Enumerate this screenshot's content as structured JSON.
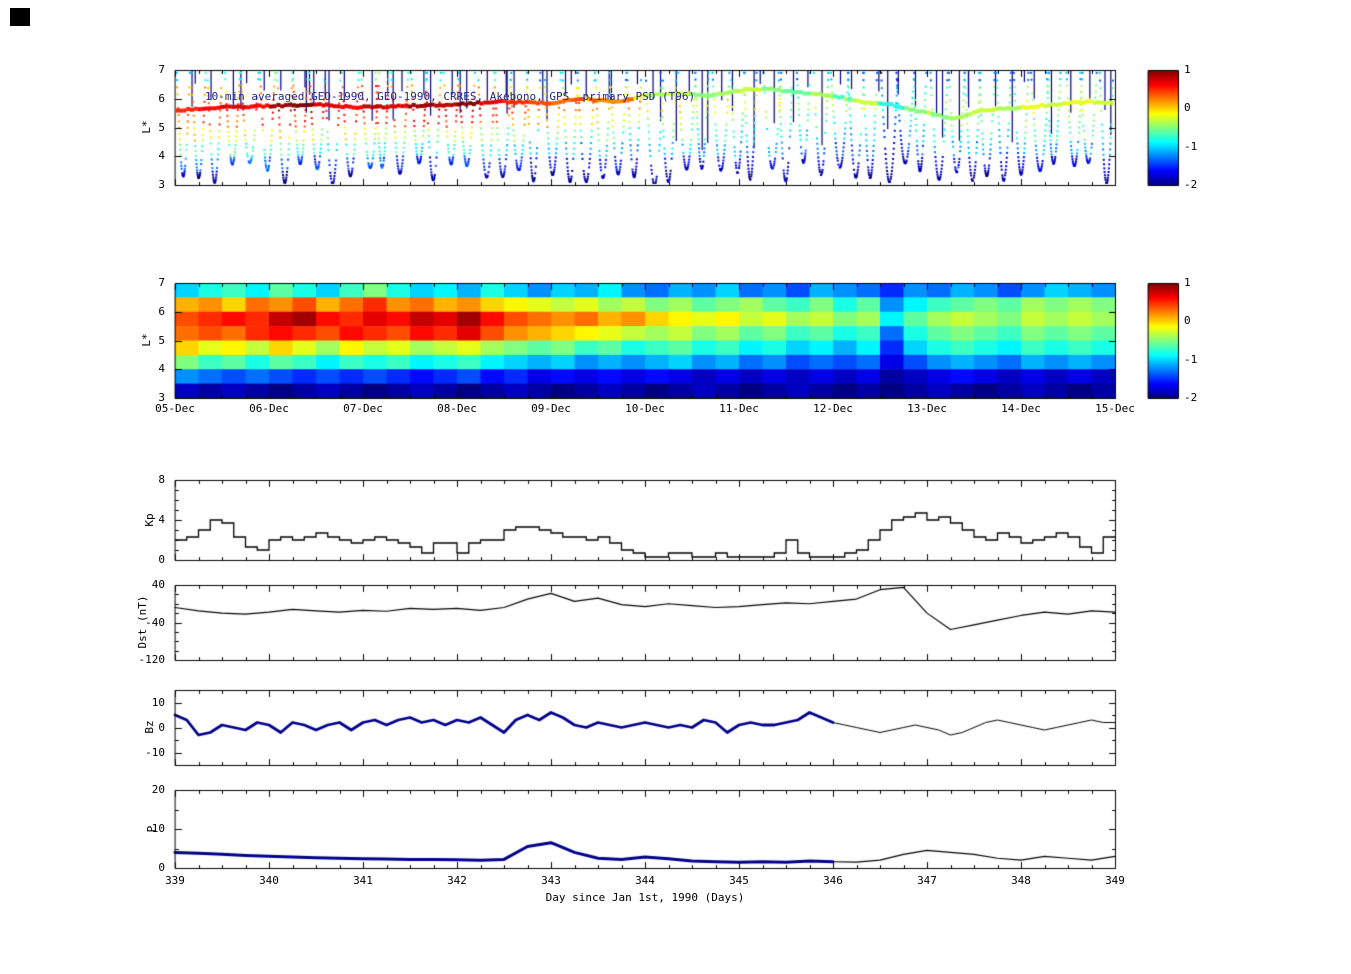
{
  "figure": {
    "xlabel": "Day since Jan 1st, 1990 (Days)",
    "ticks": {
      "panel_L": [
        "7",
        "6",
        "5",
        "4",
        "3"
      ],
      "dates": [
        "05-Dec",
        "06-Dec",
        "07-Dec",
        "08-Dec",
        "09-Dec",
        "10-Dec",
        "11-Dec",
        "12-Dec",
        "13-Dec",
        "14-Dec",
        "15-Dec"
      ],
      "days": [
        "339",
        "340",
        "341",
        "342",
        "343",
        "344",
        "345",
        "346",
        "347",
        "348",
        "349"
      ],
      "colorbar": [
        "1",
        "0",
        "-1",
        "-2"
      ],
      "kp": [
        "8",
        "4",
        "0"
      ],
      "dst": [
        "40",
        "-40",
        "-120"
      ],
      "bz": [
        "10",
        "0",
        "-10"
      ],
      "p": [
        "20",
        "10",
        "0"
      ]
    }
  },
  "chart_data": [
    {
      "type": "scatter",
      "title": "10-min averaged GEO-1990, GEO-1990, CRRES, Akebono, GPS  primary PSD (T96)",
      "title_color": "#26268c",
      "ylabel": "L*",
      "xlim": [
        339,
        349
      ],
      "ylim": [
        3,
        7
      ],
      "colorbar": {
        "range": [
          -2,
          1
        ],
        "ticks": [
          1,
          0,
          -1,
          -2
        ],
        "colormap": "jet"
      },
      "passes": {
        "count": 56,
        "duration_days": 0.15,
        "l_top": 6.9,
        "spike_color": "#000080"
      },
      "geo_track": {
        "points": [
          [
            339.0,
            5.6
          ],
          [
            339.5,
            5.7
          ],
          [
            340.0,
            5.75
          ],
          [
            340.5,
            5.8
          ],
          [
            341.0,
            5.7
          ],
          [
            341.5,
            5.75
          ],
          [
            342.0,
            5.8
          ],
          [
            342.5,
            5.9
          ],
          [
            343.0,
            5.85
          ],
          [
            343.3,
            6.0
          ],
          [
            343.7,
            5.9
          ],
          [
            344.0,
            6.1
          ],
          [
            344.3,
            6.2
          ],
          [
            344.7,
            6.1
          ],
          [
            345.0,
            6.3
          ],
          [
            345.3,
            6.35
          ],
          [
            345.7,
            6.2
          ],
          [
            346.0,
            6.1
          ],
          [
            346.3,
            5.9
          ],
          [
            346.6,
            5.8
          ],
          [
            347.0,
            5.5
          ],
          [
            347.3,
            5.3
          ],
          [
            347.6,
            5.6
          ],
          [
            348.0,
            5.7
          ],
          [
            348.4,
            5.8
          ],
          [
            348.7,
            5.9
          ],
          [
            349.0,
            5.85
          ]
        ]
      }
    },
    {
      "type": "heatmap",
      "ylabel": "L*",
      "xlim": [
        339,
        349
      ],
      "ylim": [
        3,
        7
      ],
      "colorbar": {
        "range": [
          -2,
          1
        ],
        "ticks": [
          1,
          0,
          -1,
          -2
        ],
        "colormap": "jet"
      },
      "grid": {
        "x_start": 339,
        "x_step": 0.25,
        "l_top": 7,
        "l_step": 0.5,
        "values": [
          [
            -1.0,
            -0.8,
            -0.7,
            -0.9,
            -0.6,
            -0.8,
            -1.0,
            -0.7,
            -0.5,
            -0.8,
            -1.0,
            -0.9,
            -1.1,
            -0.8,
            -1.0,
            -1.2,
            -1.0,
            -1.1,
            -0.9,
            -1.2,
            -1.3,
            -1.1,
            -1.2,
            -1.0,
            -1.3,
            -1.2,
            -1.4,
            -1.1,
            -1.2,
            -1.3,
            -1.5,
            -1.2,
            -1.3,
            -1.1,
            -1.2,
            -1.4,
            -1.2,
            -1.0,
            -1.1,
            -1.2
          ],
          [
            0.1,
            0.2,
            0.0,
            0.3,
            0.2,
            0.4,
            0.1,
            0.3,
            0.5,
            0.2,
            0.3,
            0.1,
            0.2,
            0.0,
            -0.1,
            -0.2,
            -0.3,
            -0.2,
            -0.4,
            -0.3,
            -0.5,
            -0.4,
            -0.6,
            -0.5,
            -0.4,
            -0.6,
            -0.7,
            -0.5,
            -0.8,
            -0.6,
            -1.2,
            -0.9,
            -0.7,
            -0.6,
            -0.5,
            -0.6,
            -0.4,
            -0.5,
            -0.4,
            -0.5
          ],
          [
            0.4,
            0.5,
            0.6,
            0.5,
            0.8,
            0.9,
            0.6,
            0.5,
            0.7,
            0.6,
            0.8,
            0.7,
            0.9,
            0.6,
            0.4,
            0.3,
            0.2,
            0.3,
            0.1,
            0.2,
            0.0,
            -0.1,
            -0.2,
            -0.1,
            -0.3,
            -0.2,
            -0.4,
            -0.3,
            -0.5,
            -0.4,
            -0.9,
            -0.6,
            -0.4,
            -0.3,
            -0.4,
            -0.5,
            -0.3,
            -0.4,
            -0.3,
            -0.4
          ],
          [
            0.3,
            0.4,
            0.3,
            0.5,
            0.6,
            0.5,
            0.4,
            0.6,
            0.5,
            0.4,
            0.6,
            0.5,
            0.7,
            0.4,
            0.2,
            0.1,
            0.0,
            -0.1,
            -0.2,
            -0.3,
            -0.4,
            -0.3,
            -0.5,
            -0.4,
            -0.6,
            -0.5,
            -0.7,
            -0.6,
            -0.8,
            -0.7,
            -1.3,
            -0.8,
            -0.6,
            -0.5,
            -0.6,
            -0.7,
            -0.5,
            -0.6,
            -0.5,
            -0.6
          ],
          [
            0.0,
            -0.2,
            -0.1,
            -0.3,
            0.0,
            -0.2,
            -0.4,
            -0.1,
            -0.3,
            -0.2,
            -0.4,
            -0.3,
            -0.2,
            -0.4,
            -0.5,
            -0.6,
            -0.5,
            -0.7,
            -0.6,
            -0.8,
            -0.7,
            -0.6,
            -0.8,
            -0.7,
            -0.9,
            -0.8,
            -1.0,
            -0.9,
            -1.1,
            -0.9,
            -1.5,
            -1.0,
            -0.8,
            -0.7,
            -0.8,
            -0.9,
            -0.7,
            -0.8,
            -0.7,
            -0.8
          ],
          [
            -0.5,
            -0.7,
            -0.6,
            -0.8,
            -0.6,
            -0.7,
            -0.9,
            -0.7,
            -0.8,
            -0.7,
            -0.9,
            -0.8,
            -0.7,
            -0.9,
            -1.0,
            -1.1,
            -1.0,
            -1.2,
            -1.1,
            -1.2,
            -1.1,
            -1.0,
            -1.2,
            -1.1,
            -1.3,
            -1.2,
            -1.4,
            -1.3,
            -1.4,
            -1.3,
            -1.7,
            -1.4,
            -1.2,
            -1.1,
            -1.2,
            -1.3,
            -1.1,
            -1.2,
            -1.1,
            -1.2
          ],
          [
            -1.2,
            -1.3,
            -1.4,
            -1.3,
            -1.4,
            -1.5,
            -1.4,
            -1.5,
            -1.4,
            -1.5,
            -1.6,
            -1.5,
            -1.4,
            -1.6,
            -1.5,
            -1.7,
            -1.6,
            -1.7,
            -1.6,
            -1.7,
            -1.6,
            -1.7,
            -1.8,
            -1.7,
            -1.8,
            -1.7,
            -1.8,
            -1.7,
            -1.8,
            -1.7,
            -1.9,
            -1.8,
            -1.7,
            -1.6,
            -1.7,
            -1.8,
            -1.7,
            -1.8,
            -1.7,
            -1.8
          ],
          [
            -1.8,
            -1.9,
            -1.8,
            -1.9,
            -2.0,
            -1.9,
            -1.8,
            -1.9,
            -2.0,
            -1.9,
            -1.8,
            -1.9,
            -2.0,
            -1.9,
            -1.8,
            -1.9,
            -2.0,
            -1.9,
            -1.8,
            -1.9,
            -2.0,
            -1.9,
            -1.8,
            -1.9,
            -2.0,
            -1.9,
            -1.8,
            -1.9,
            -2.0,
            -1.9,
            -2.0,
            -1.9,
            -1.8,
            -1.9,
            -2.0,
            -1.9,
            -1.8,
            -1.9,
            -2.0,
            -1.9
          ]
        ]
      }
    },
    {
      "type": "line",
      "style": "step",
      "ylabel": "Kp",
      "ylim": [
        0,
        8
      ],
      "yticks": [
        8,
        4,
        0
      ],
      "x_start": 339,
      "x_step": 0.125,
      "values": [
        2.0,
        2.3,
        3.0,
        4.0,
        3.7,
        2.3,
        1.3,
        1.0,
        2.0,
        2.3,
        2.0,
        2.3,
        2.7,
        2.3,
        2.0,
        1.7,
        2.0,
        2.3,
        2.0,
        1.7,
        1.3,
        0.7,
        1.7,
        1.7,
        0.7,
        1.7,
        2.0,
        2.0,
        3.0,
        3.3,
        3.3,
        3.0,
        2.7,
        2.3,
        2.3,
        2.0,
        2.3,
        1.7,
        1.0,
        0.7,
        0.3,
        0.3,
        0.7,
        0.7,
        0.3,
        0.3,
        0.7,
        0.3,
        0.3,
        0.3,
        0.3,
        0.7,
        2.0,
        0.7,
        0.3,
        0.3,
        0.3,
        0.7,
        1.0,
        2.0,
        3.0,
        4.0,
        4.3,
        4.7,
        4.0,
        4.3,
        3.7,
        3.0,
        2.3,
        2.0,
        2.7,
        2.3,
        1.7,
        2.0,
        2.3,
        2.7,
        2.3,
        1.3,
        0.7,
        2.3
      ]
    },
    {
      "type": "line",
      "ylabel": "Dst (nT)",
      "ylim": [
        -120,
        40
      ],
      "yticks": [
        40,
        -40,
        -120
      ],
      "x_start": 339,
      "x_step": 0.25,
      "values": [
        -8,
        -15,
        -20,
        -22,
        -18,
        -12,
        -15,
        -18,
        -14,
        -16,
        -10,
        -12,
        -10,
        -14,
        -8,
        10,
        22,
        5,
        12,
        -2,
        -6,
        0,
        -4,
        -8,
        -6,
        -2,
        2,
        0,
        5,
        10,
        30,
        35,
        -20,
        -55,
        -45,
        -35,
        -25,
        -18,
        -22,
        -15,
        -18
      ]
    },
    {
      "type": "line",
      "ylabel": "Bz",
      "ylim": [
        -15,
        15
      ],
      "yticks": [
        10,
        0,
        -10
      ],
      "x_start": 339,
      "x_step": 0.125,
      "thick_until": 346,
      "thick_color": "#00008b",
      "values": [
        5,
        3,
        -3,
        -2,
        1,
        0,
        -1,
        2,
        1,
        -2,
        2,
        1,
        -1,
        1,
        2,
        -1,
        2,
        3,
        1,
        3,
        4,
        2,
        3,
        1,
        3,
        2,
        4,
        1,
        -2,
        3,
        5,
        3,
        6,
        4,
        1,
        0,
        2,
        1,
        0,
        1,
        2,
        1,
        0,
        1,
        0,
        3,
        2,
        -2,
        1,
        2,
        1,
        1,
        2,
        3,
        6,
        4,
        2,
        1,
        0,
        -1,
        -2,
        -1,
        0,
        1,
        0,
        -1,
        -3,
        -2,
        0,
        2,
        3,
        2,
        1,
        0,
        -1,
        0,
        1,
        2,
        3,
        2,
        2
      ]
    },
    {
      "type": "line",
      "ylabel": "P",
      "ylim": [
        0,
        20
      ],
      "yticks": [
        20,
        10,
        0
      ],
      "x_start": 339,
      "x_step": 0.25,
      "thick_until": 346,
      "thick_color": "#00008b",
      "xlabel": "Day since Jan 1st, 1990 (Days)",
      "xticks": [
        339,
        340,
        341,
        342,
        343,
        344,
        345,
        346,
        347,
        348,
        349
      ],
      "values": [
        4.0,
        3.8,
        3.5,
        3.2,
        3.0,
        2.8,
        2.6,
        2.5,
        2.4,
        2.3,
        2.2,
        2.2,
        2.1,
        2.0,
        2.2,
        5.5,
        6.5,
        4.0,
        2.5,
        2.2,
        2.8,
        2.4,
        1.8,
        1.6,
        1.5,
        1.6,
        1.5,
        1.8,
        1.6,
        1.5,
        2.0,
        3.5,
        4.5,
        4.0,
        3.5,
        2.5,
        2.0,
        3.0,
        2.5,
        2.0,
        3.0
      ]
    }
  ]
}
